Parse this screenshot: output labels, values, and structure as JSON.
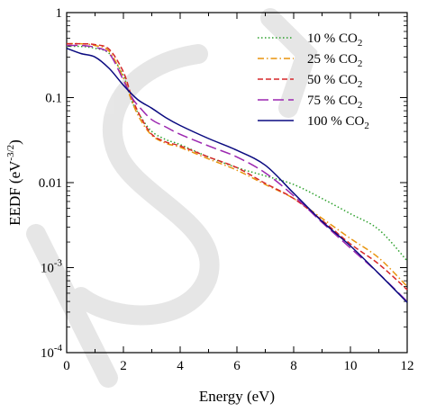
{
  "chart_data": {
    "type": "line",
    "xlabel": "Energy (eV)",
    "ylabel": "EEDF (eV",
    "ylabel_exponent": "-3/2",
    "ylabel_close": ")",
    "xlim": [
      0,
      12
    ],
    "ylim": [
      0.0001,
      1
    ],
    "yscale": "log",
    "grid": false,
    "legend_position": "top-right",
    "x_ticks": [
      {
        "value": 0,
        "label": "0"
      },
      {
        "value": 2,
        "label": "2"
      },
      {
        "value": 4,
        "label": "4"
      },
      {
        "value": 6,
        "label": "6"
      },
      {
        "value": 8,
        "label": "8"
      },
      {
        "value": 10,
        "label": "10"
      },
      {
        "value": 12,
        "label": "12"
      }
    ],
    "y_ticks": [
      {
        "value": 1,
        "base": "1",
        "exp": ""
      },
      {
        "value": 0.1,
        "base": "0.1",
        "exp": ""
      },
      {
        "value": 0.01,
        "base": "0.01",
        "exp": ""
      },
      {
        "value": 0.001,
        "base": "10",
        "exp": "-3"
      },
      {
        "value": 0.0001,
        "base": "10",
        "exp": "-4"
      }
    ],
    "series": [
      {
        "name": "10 % CO",
        "name_sub": "2",
        "color": "#2ca02c",
        "dash": "1.5,2.5",
        "points": [
          [
            0,
            0.4
          ],
          [
            0.5,
            0.4
          ],
          [
            1,
            0.38
          ],
          [
            1.5,
            0.33
          ],
          [
            2,
            0.18
          ],
          [
            2.3,
            0.09
          ],
          [
            2.6,
            0.06
          ],
          [
            3,
            0.04
          ],
          [
            3.5,
            0.032
          ],
          [
            4,
            0.028
          ],
          [
            5,
            0.02
          ],
          [
            6,
            0.015
          ],
          [
            7,
            0.012
          ],
          [
            8,
            0.0095
          ],
          [
            9,
            0.0065
          ],
          [
            10,
            0.0043
          ],
          [
            11,
            0.0028
          ],
          [
            12,
            0.0012
          ]
        ]
      },
      {
        "name": "25 % CO",
        "name_sub": "2",
        "color": "#e8930c",
        "dash": "7,3,1.5,3",
        "points": [
          [
            0,
            0.43
          ],
          [
            0.5,
            0.43
          ],
          [
            1,
            0.41
          ],
          [
            1.5,
            0.35
          ],
          [
            2,
            0.17
          ],
          [
            2.3,
            0.09
          ],
          [
            2.6,
            0.055
          ],
          [
            3,
            0.036
          ],
          [
            3.5,
            0.029
          ],
          [
            4,
            0.026
          ],
          [
            5,
            0.019
          ],
          [
            6,
            0.014
          ],
          [
            7,
            0.0095
          ],
          [
            8,
            0.0065
          ],
          [
            9,
            0.0038
          ],
          [
            10,
            0.0022
          ],
          [
            11,
            0.0013
          ],
          [
            12,
            0.0006
          ]
        ]
      },
      {
        "name": "50 % CO",
        "name_sub": "2",
        "color": "#d62728",
        "dash": "6,3",
        "points": [
          [
            0,
            0.43
          ],
          [
            0.5,
            0.43
          ],
          [
            1,
            0.42
          ],
          [
            1.5,
            0.37
          ],
          [
            2,
            0.2
          ],
          [
            2.3,
            0.1
          ],
          [
            2.6,
            0.06
          ],
          [
            3,
            0.037
          ],
          [
            3.5,
            0.03
          ],
          [
            4,
            0.027
          ],
          [
            5,
            0.02
          ],
          [
            6,
            0.015
          ],
          [
            7,
            0.0098
          ],
          [
            8,
            0.0065
          ],
          [
            9,
            0.0036
          ],
          [
            10,
            0.0019
          ],
          [
            11,
            0.0011
          ],
          [
            12,
            0.00055
          ]
        ]
      },
      {
        "name": "75 % CO",
        "name_sub": "2",
        "color": "#9c27b0",
        "dash": "12,5",
        "points": [
          [
            0,
            0.41
          ],
          [
            0.5,
            0.41
          ],
          [
            1,
            0.39
          ],
          [
            1.5,
            0.33
          ],
          [
            2,
            0.16
          ],
          [
            2.3,
            0.1
          ],
          [
            2.6,
            0.075
          ],
          [
            3,
            0.055
          ],
          [
            3.5,
            0.045
          ],
          [
            4,
            0.037
          ],
          [
            5,
            0.027
          ],
          [
            6,
            0.02
          ],
          [
            7,
            0.013
          ],
          [
            8,
            0.007
          ],
          [
            9,
            0.0034
          ],
          [
            10,
            0.0017
          ],
          [
            11,
            0.00085
          ],
          [
            12,
            0.0004
          ]
        ]
      },
      {
        "name": "100 % CO",
        "name_sub": "2",
        "color": "#0a0a80",
        "dash": "",
        "points": [
          [
            0,
            0.38
          ],
          [
            0.5,
            0.33
          ],
          [
            1,
            0.3
          ],
          [
            1.5,
            0.22
          ],
          [
            2,
            0.14
          ],
          [
            2.5,
            0.095
          ],
          [
            3,
            0.075
          ],
          [
            3.5,
            0.058
          ],
          [
            4,
            0.047
          ],
          [
            5,
            0.033
          ],
          [
            6,
            0.024
          ],
          [
            7,
            0.016
          ],
          [
            8,
            0.0075
          ],
          [
            9,
            0.0035
          ],
          [
            10,
            0.0018
          ],
          [
            11,
            0.00085
          ],
          [
            12,
            0.00039
          ]
        ]
      }
    ]
  }
}
